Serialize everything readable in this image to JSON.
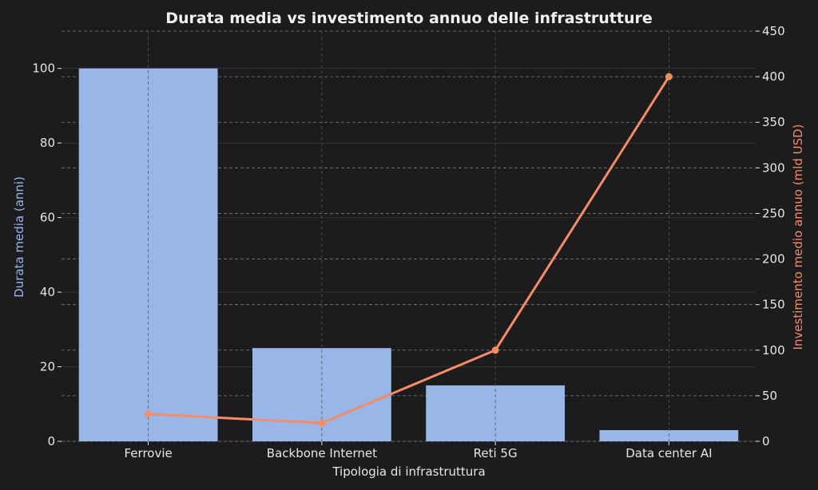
{
  "colors": {
    "background": "#1c1b1e",
    "bars": "#98b6e8",
    "line": "#f48c67",
    "left_axis_label": "#98b6e8",
    "right_axis_label": "#f48c67",
    "text": "#e6e6e6",
    "grid": "#8a8a8a"
  },
  "chart_data": {
    "type": "bar+line",
    "title": "Durata media vs investimento annuo delle infrastrutture",
    "xlabel": "Tipologia di infrastruttura",
    "ylabel_left": "Durata media (anni)",
    "ylabel_right": "Investimento medio annuo (mld USD)",
    "categories": [
      "Ferrovie",
      "Backbone Internet",
      "Reti 5G",
      "Data center AI"
    ],
    "bar_series": {
      "values": [
        100,
        25,
        15,
        3
      ]
    },
    "line_series": {
      "values": [
        30,
        20,
        100,
        400
      ]
    },
    "ylim_left": [
      0,
      110
    ],
    "ylim_right": [
      0,
      450
    ],
    "yticks_left": [
      "0",
      "20",
      "40",
      "60",
      "80",
      "100"
    ],
    "yticks_right": [
      "0",
      "50",
      "100",
      "150",
      "200",
      "250",
      "300",
      "350",
      "400",
      "450"
    ],
    "grid": true,
    "grid_style": "dashed"
  }
}
